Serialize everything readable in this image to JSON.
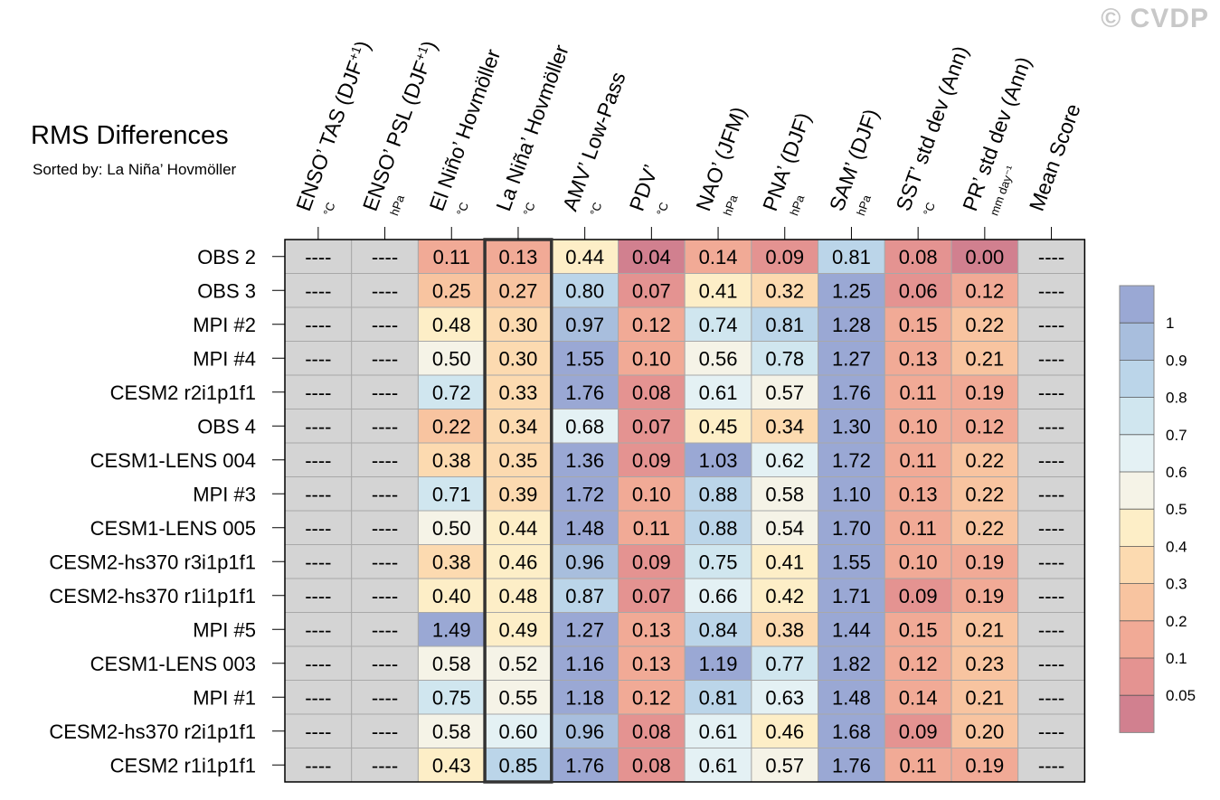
{
  "title": "RMS Differences",
  "subtitle": "Sorted by: La Niña’ Hovmöller",
  "watermark": "© CVDP",
  "chart_data": {
    "type": "heatmap",
    "title": "RMS Differences",
    "subtitle": "Sorted by: La Niña’ Hovmöller",
    "columns": [
      {
        "label": "ENSO’ TAS (DJF",
        "sup": "+1",
        "close": ")",
        "unit": "°C"
      },
      {
        "label": "ENSO’ PSL (DJF",
        "sup": "+1",
        "close": ")",
        "unit": "hPa"
      },
      {
        "label": "El Niño’ Hovmöller",
        "sup": "",
        "close": "",
        "unit": "°C"
      },
      {
        "label": "La Niña’ Hovmöller",
        "sup": "",
        "close": "",
        "unit": "°C"
      },
      {
        "label": "AMV’ Low-Pass",
        "sup": "",
        "close": "",
        "unit": "°C"
      },
      {
        "label": "PDV’",
        "sup": "",
        "close": "",
        "unit": "°C"
      },
      {
        "label": "NAO’ (JFM)",
        "sup": "",
        "close": "",
        "unit": "hPa"
      },
      {
        "label": "PNA’ (DJF)",
        "sup": "",
        "close": "",
        "unit": "hPa"
      },
      {
        "label": "SAM’ (DJF)",
        "sup": "",
        "close": "",
        "unit": "hPa"
      },
      {
        "label": "SST’ std dev (Ann)",
        "sup": "",
        "close": "",
        "unit": "°C"
      },
      {
        "label": "PR’ std dev (Ann)",
        "sup": "",
        "close": "",
        "unit": "mm day⁻¹"
      },
      {
        "label": "Mean Score",
        "sup": "",
        "close": "",
        "unit": ""
      }
    ],
    "missing_label": "----",
    "highlight_column": 3,
    "rows": [
      {
        "name": "OBS 2",
        "values": [
          null,
          null,
          0.11,
          0.13,
          0.44,
          0.04,
          0.14,
          0.09,
          0.81,
          0.08,
          0.0,
          null
        ]
      },
      {
        "name": "OBS 3",
        "values": [
          null,
          null,
          0.25,
          0.27,
          0.8,
          0.07,
          0.41,
          0.32,
          1.25,
          0.06,
          0.12,
          null
        ]
      },
      {
        "name": "MPI #2",
        "values": [
          null,
          null,
          0.48,
          0.3,
          0.97,
          0.12,
          0.74,
          0.81,
          1.28,
          0.15,
          0.22,
          null
        ]
      },
      {
        "name": "MPI #4",
        "values": [
          null,
          null,
          0.5,
          0.3,
          1.55,
          0.1,
          0.56,
          0.78,
          1.27,
          0.13,
          0.21,
          null
        ]
      },
      {
        "name": "CESM2 r2i1p1f1",
        "values": [
          null,
          null,
          0.72,
          0.33,
          1.76,
          0.08,
          0.61,
          0.57,
          1.76,
          0.11,
          0.19,
          null
        ]
      },
      {
        "name": "OBS 4",
        "values": [
          null,
          null,
          0.22,
          0.34,
          0.68,
          0.07,
          0.45,
          0.34,
          1.3,
          0.1,
          0.12,
          null
        ]
      },
      {
        "name": "CESM1-LENS 004",
        "values": [
          null,
          null,
          0.38,
          0.35,
          1.36,
          0.09,
          1.03,
          0.62,
          1.72,
          0.11,
          0.22,
          null
        ]
      },
      {
        "name": "MPI #3",
        "values": [
          null,
          null,
          0.71,
          0.39,
          1.72,
          0.1,
          0.88,
          0.58,
          1.1,
          0.13,
          0.22,
          null
        ]
      },
      {
        "name": "CESM1-LENS 005",
        "values": [
          null,
          null,
          0.5,
          0.44,
          1.48,
          0.11,
          0.88,
          0.54,
          1.7,
          0.11,
          0.22,
          null
        ]
      },
      {
        "name": "CESM2-hs370 r3i1p1f1",
        "values": [
          null,
          null,
          0.38,
          0.46,
          0.96,
          0.09,
          0.75,
          0.41,
          1.55,
          0.1,
          0.19,
          null
        ]
      },
      {
        "name": "CESM2-hs370 r1i1p1f1",
        "values": [
          null,
          null,
          0.4,
          0.48,
          0.87,
          0.07,
          0.66,
          0.42,
          1.71,
          0.09,
          0.19,
          null
        ]
      },
      {
        "name": "MPI #5",
        "values": [
          null,
          null,
          1.49,
          0.49,
          1.27,
          0.13,
          0.84,
          0.38,
          1.44,
          0.15,
          0.21,
          null
        ]
      },
      {
        "name": "CESM1-LENS 003",
        "values": [
          null,
          null,
          0.58,
          0.52,
          1.16,
          0.13,
          1.19,
          0.77,
          1.82,
          0.12,
          0.23,
          null
        ]
      },
      {
        "name": "MPI #1",
        "values": [
          null,
          null,
          0.75,
          0.55,
          1.18,
          0.12,
          0.81,
          0.63,
          1.48,
          0.14,
          0.21,
          null
        ]
      },
      {
        "name": "CESM2-hs370 r2i1p1f1",
        "values": [
          null,
          null,
          0.58,
          0.6,
          0.96,
          0.08,
          0.61,
          0.46,
          1.68,
          0.09,
          0.2,
          null
        ]
      },
      {
        "name": "CESM2 r1i1p1f1",
        "values": [
          null,
          null,
          0.43,
          0.85,
          1.76,
          0.08,
          0.61,
          0.57,
          1.76,
          0.11,
          0.19,
          null
        ]
      }
    ],
    "colorbar": {
      "bounds": [
        0.05,
        0.1,
        0.2,
        0.3,
        0.4,
        0.5,
        0.6,
        0.7,
        0.8,
        0.9,
        1
      ],
      "labels": [
        "0.05",
        "0.1",
        "0.2",
        "0.3",
        "0.4",
        "0.5",
        "0.6",
        "0.7",
        "0.8",
        "0.9",
        "1"
      ],
      "colors": [
        "#d1808f",
        "#e49391",
        "#f1aa96",
        "#f8c4a0",
        "#fcdab0",
        "#fdeec7",
        "#f5f3e7",
        "#e4f1f4",
        "#d0e6ef",
        "#bbd5e9",
        "#a8bedd",
        "#9aa8d4"
      ]
    },
    "missing_color": "#d4d4d4"
  }
}
